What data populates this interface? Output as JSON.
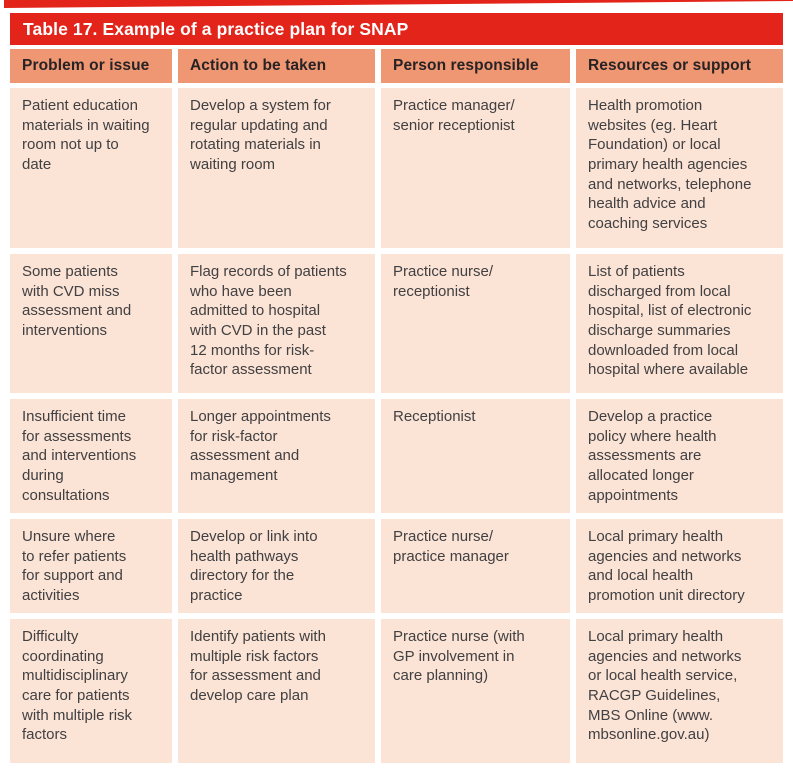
{
  "colors": {
    "accent_red": "#e2241b",
    "header_salmon": "#ef9672",
    "cell_pink": "#fbe3d5",
    "title_text": "#ffffff",
    "body_text": "#414042"
  },
  "table": {
    "title": "Table 17. Example of a practice plan for SNAP",
    "columns": [
      "Problem or issue",
      "Action to be taken",
      "Person responsible",
      "Resources or support"
    ],
    "rows": [
      {
        "cells": [
          "Patient education\nmaterials in waiting\nroom not up to\ndate",
          "Develop a system for\nregular updating and\nrotating materials in\nwaiting room",
          "Practice manager/\nsenior receptionist",
          "Health promotion\nwebsites (eg. Heart\nFoundation) or local\nprimary health agencies\nand networks, telephone\nhealth advice and\ncoaching services"
        ]
      },
      {
        "cells": [
          "Some patients\nwith CVD miss\nassessment and\ninterventions",
          "Flag records of patients\nwho have been\nadmitted to hospital\nwith CVD in the past\n12 months for risk-\nfactor assessment",
          "Practice nurse/\nreceptionist",
          "List of patients\ndischarged from local\nhospital, list of electronic\ndischarge summaries\ndownloaded from local\nhospital where available"
        ]
      },
      {
        "cells": [
          "Insufficient time\nfor assessments\nand interventions\nduring\nconsultations",
          "Longer appointments\nfor risk-factor\nassessment and\nmanagement",
          "Receptionist",
          "Develop a practice\npolicy where health\nassessments are\nallocated longer\nappointments"
        ]
      },
      {
        "cells": [
          "Unsure where\nto refer patients\nfor support and\nactivities",
          "Develop or link into\nhealth pathways\ndirectory for the\npractice",
          "Practice nurse/\npractice manager",
          "Local primary health\nagencies and networks\nand local health\npromotion unit directory"
        ]
      },
      {
        "cells": [
          "Difficulty\ncoordinating\nmultidisciplinary\ncare for patients\nwith multiple risk\nfactors",
          "Identify patients with\nmultiple risk factors\nfor assessment and\ndevelop care plan",
          "Practice nurse (with\nGP involvement in\ncare planning)",
          "Local primary health\nagencies and networks\nor local health service,\nRACGP Guidelines,\nMBS Online (www.\nmbsonline.gov.au)"
        ]
      }
    ]
  }
}
